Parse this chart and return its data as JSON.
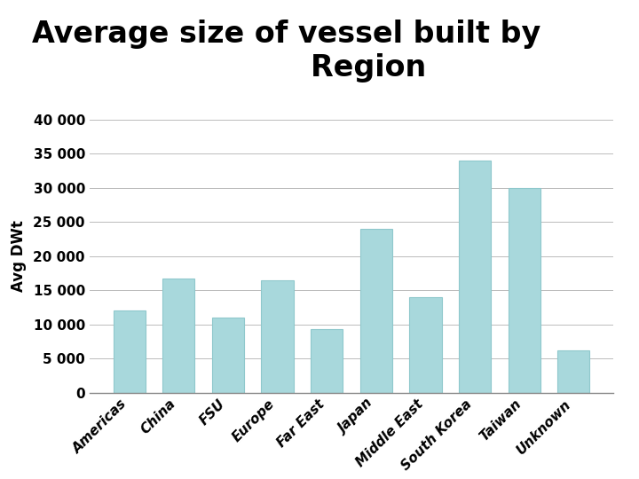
{
  "title_line1": "Average size of vessel built by",
  "title_line2": "Region",
  "ylabel": "Avg DWt",
  "categories": [
    "Americas",
    "China",
    "FSU",
    "Europe",
    "Far East",
    "Japan",
    "Middle East",
    "South Korea",
    "Taiwan",
    "Unknown"
  ],
  "values": [
    12000,
    16700,
    11000,
    16500,
    9300,
    24000,
    14000,
    34000,
    30000,
    6200
  ],
  "bar_color": "#a8d8dc",
  "bar_edgecolor": "#8fc8cc",
  "ylim": [
    0,
    40000
  ],
  "yticks": [
    0,
    5000,
    10000,
    15000,
    20000,
    25000,
    30000,
    35000,
    40000
  ],
  "background_color": "#ffffff",
  "title_fontsize": 24,
  "ylabel_fontsize": 12,
  "ytick_fontsize": 11,
  "xtick_fontsize": 11,
  "grid_color": "#bbbbbb"
}
